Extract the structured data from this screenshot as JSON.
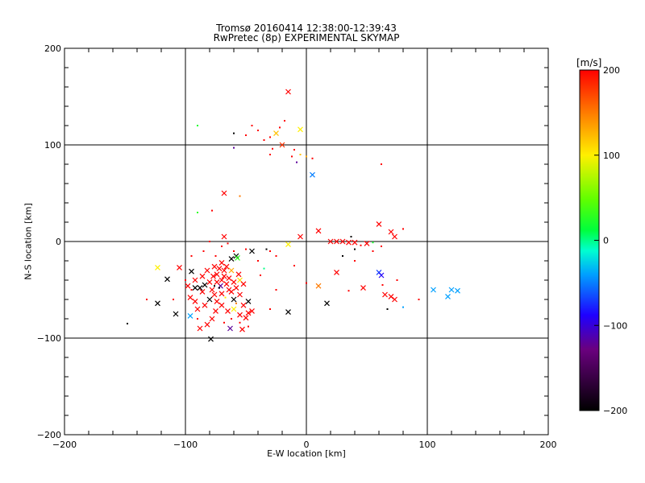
{
  "chart_data": {
    "type": "scatter",
    "title": "Tromsø 20160414 12:38:00-12:39:43",
    "subtitle": "RwPretec (8p) EXPERIMENTAL SKYMAP",
    "xlabel": "E-W location [km]",
    "ylabel": "N-S location [km]",
    "xlim": [
      -200,
      200
    ],
    "ylim": [
      -200,
      200
    ],
    "x_ticks": [
      -200,
      -100,
      0,
      100,
      200
    ],
    "y_ticks": [
      -200,
      -100,
      0,
      100,
      200
    ],
    "x_tick_labels": [
      "−200",
      "−100",
      "0",
      "100",
      "200"
    ],
    "y_tick_labels": [
      "−200",
      "−100",
      "0",
      "100",
      "200"
    ],
    "grid": true,
    "colorbar": {
      "unit": "[m/s]",
      "range": [
        -200,
        200
      ],
      "ticks": [
        -200,
        -100,
        0,
        100,
        200
      ],
      "tick_labels": [
        "−200",
        "−100",
        "0",
        "100",
        "200"
      ],
      "colormap": "rainbow (black-purple-blue-cyan-green-yellow-red)"
    },
    "markers": {
      "large": "cross (x)",
      "small": "dot"
    },
    "points": [
      {
        "x": -15,
        "y": 155,
        "v": 200,
        "m": "x"
      },
      {
        "x": -5,
        "y": 116,
        "v": 100,
        "m": "x"
      },
      {
        "x": -25,
        "y": 112,
        "v": 120,
        "m": "x"
      },
      {
        "x": -20,
        "y": 100,
        "v": 180,
        "m": "x"
      },
      {
        "x": -30,
        "y": 108,
        "v": 200,
        "m": "."
      },
      {
        "x": -35,
        "y": 105,
        "v": 200,
        "m": "."
      },
      {
        "x": -40,
        "y": 115,
        "v": 200,
        "m": "."
      },
      {
        "x": -45,
        "y": 120,
        "v": 200,
        "m": "."
      },
      {
        "x": -50,
        "y": 110,
        "v": 200,
        "m": "."
      },
      {
        "x": -60,
        "y": 112,
        "v": -200,
        "m": "."
      },
      {
        "x": -60,
        "y": 97,
        "v": -120,
        "m": "."
      },
      {
        "x": -10,
        "y": 95,
        "v": 200,
        "m": "."
      },
      {
        "x": -5,
        "y": 90,
        "v": 120,
        "m": "."
      },
      {
        "x": 0,
        "y": 88,
        "v": 130,
        "m": "."
      },
      {
        "x": 5,
        "y": 86,
        "v": 200,
        "m": "."
      },
      {
        "x": -8,
        "y": 82,
        "v": -120,
        "m": "."
      },
      {
        "x": -12,
        "y": 88,
        "v": 200,
        "m": "."
      },
      {
        "x": -30,
        "y": 90,
        "v": 200,
        "m": "."
      },
      {
        "x": -28,
        "y": 96,
        "v": 200,
        "m": "."
      },
      {
        "x": -22,
        "y": 118,
        "v": 200,
        "m": "."
      },
      {
        "x": -18,
        "y": 125,
        "v": 200,
        "m": "."
      },
      {
        "x": 5,
        "y": 69,
        "v": -50,
        "m": "x"
      },
      {
        "x": 62,
        "y": 80,
        "v": 200,
        "m": "."
      },
      {
        "x": -90,
        "y": 120,
        "v": 20,
        "m": "."
      },
      {
        "x": -68,
        "y": 50,
        "v": 200,
        "m": "x"
      },
      {
        "x": -55,
        "y": 47,
        "v": 150,
        "m": "."
      },
      {
        "x": -90,
        "y": 30,
        "v": 30,
        "m": "."
      },
      {
        "x": -78,
        "y": 32,
        "v": 200,
        "m": "."
      },
      {
        "x": -68,
        "y": 5,
        "v": 200,
        "m": "x"
      },
      {
        "x": -5,
        "y": 5,
        "v": 200,
        "m": "x"
      },
      {
        "x": 10,
        "y": 11,
        "v": 200,
        "m": "x"
      },
      {
        "x": -15,
        "y": -3,
        "v": 100,
        "m": "x"
      },
      {
        "x": 20,
        "y": 0,
        "v": 200,
        "m": "x"
      },
      {
        "x": 25,
        "y": 0,
        "v": 200,
        "m": "x"
      },
      {
        "x": 30,
        "y": 0,
        "v": 200,
        "m": "x"
      },
      {
        "x": 35,
        "y": -1,
        "v": 200,
        "m": "x"
      },
      {
        "x": 40,
        "y": -1,
        "v": 200,
        "m": "x"
      },
      {
        "x": 37,
        "y": 5,
        "v": -200,
        "m": "."
      },
      {
        "x": 45,
        "y": -4,
        "v": 200,
        "m": "."
      },
      {
        "x": 50,
        "y": -2,
        "v": 200,
        "m": "x"
      },
      {
        "x": 55,
        "y": -1,
        "v": 20,
        "m": "."
      },
      {
        "x": 60,
        "y": 18,
        "v": 200,
        "m": "x"
      },
      {
        "x": 70,
        "y": 10,
        "v": 200,
        "m": "x"
      },
      {
        "x": 73,
        "y": 5,
        "v": 200,
        "m": "x"
      },
      {
        "x": 80,
        "y": 13,
        "v": 200,
        "m": "."
      },
      {
        "x": 62,
        "y": -5,
        "v": 200,
        "m": "."
      },
      {
        "x": 40,
        "y": -8,
        "v": -200,
        "m": "."
      },
      {
        "x": 30,
        "y": -15,
        "v": -200,
        "m": "."
      },
      {
        "x": -33,
        "y": -8,
        "v": -200,
        "m": "."
      },
      {
        "x": -45,
        "y": -10,
        "v": -200,
        "m": "x"
      },
      {
        "x": -58,
        "y": -15,
        "v": -200,
        "m": "x"
      },
      {
        "x": -25,
        "y": -15,
        "v": 200,
        "m": "."
      },
      {
        "x": -35,
        "y": -28,
        "v": 0,
        "m": "."
      },
      {
        "x": -10,
        "y": -25,
        "v": 200,
        "m": "."
      },
      {
        "x": 25,
        "y": -32,
        "v": 200,
        "m": "x"
      },
      {
        "x": 10,
        "y": -46,
        "v": 150,
        "m": "x"
      },
      {
        "x": 0,
        "y": -43,
        "v": 200,
        "m": "."
      },
      {
        "x": 35,
        "y": -51,
        "v": 200,
        "m": "."
      },
      {
        "x": 47,
        "y": -48,
        "v": 200,
        "m": "x"
      },
      {
        "x": 60,
        "y": -32,
        "v": -70,
        "m": "x"
      },
      {
        "x": 62,
        "y": -35,
        "v": -90,
        "m": "x"
      },
      {
        "x": 65,
        "y": -55,
        "v": 200,
        "m": "x"
      },
      {
        "x": 70,
        "y": -57,
        "v": 200,
        "m": "x"
      },
      {
        "x": 73,
        "y": -60,
        "v": 200,
        "m": "x"
      },
      {
        "x": 67,
        "y": -70,
        "v": -200,
        "m": "."
      },
      {
        "x": 80,
        "y": -68,
        "v": -40,
        "m": "."
      },
      {
        "x": 93,
        "y": -60,
        "v": 200,
        "m": "."
      },
      {
        "x": 105,
        "y": -50,
        "v": -40,
        "m": "x"
      },
      {
        "x": 117,
        "y": -57,
        "v": -40,
        "m": "x"
      },
      {
        "x": 120,
        "y": -50,
        "v": -40,
        "m": "x"
      },
      {
        "x": 125,
        "y": -51,
        "v": -40,
        "m": "x"
      },
      {
        "x": 17,
        "y": -64,
        "v": -200,
        "m": "x"
      },
      {
        "x": -15,
        "y": -73,
        "v": -200,
        "m": "x"
      },
      {
        "x": -25,
        "y": -50,
        "v": 200,
        "m": "."
      },
      {
        "x": -30,
        "y": -70,
        "v": 200,
        "m": "."
      },
      {
        "x": -123,
        "y": -27,
        "v": 100,
        "m": "x"
      },
      {
        "x": -105,
        "y": -27,
        "v": 200,
        "m": "x"
      },
      {
        "x": -115,
        "y": -39,
        "v": -200,
        "m": "x"
      },
      {
        "x": -95,
        "y": -31,
        "v": -200,
        "m": "x"
      },
      {
        "x": -123,
        "y": -64,
        "v": -200,
        "m": "x"
      },
      {
        "x": -108,
        "y": -75,
        "v": -200,
        "m": "x"
      },
      {
        "x": -148,
        "y": -85,
        "v": -200,
        "m": "."
      },
      {
        "x": -132,
        "y": -60,
        "v": 200,
        "m": "."
      },
      {
        "x": -96,
        "y": -77,
        "v": -40,
        "m": "x"
      },
      {
        "x": -79,
        "y": -101,
        "v": -200,
        "m": "x"
      },
      {
        "x": -63,
        "y": -90,
        "v": -120,
        "m": "x"
      },
      {
        "x": -53,
        "y": -91,
        "v": 200,
        "m": "x"
      },
      {
        "x": -60,
        "y": -70,
        "v": 100,
        "m": "x"
      },
      {
        "x": -60,
        "y": -60,
        "v": -200,
        "m": "x"
      },
      {
        "x": -48,
        "y": -62,
        "v": -200,
        "m": "x"
      },
      {
        "x": -62,
        "y": -18,
        "v": -200,
        "m": "x"
      },
      {
        "x": -57,
        "y": -17,
        "v": 30,
        "m": "x"
      },
      {
        "x": -62,
        "y": -30,
        "v": 130,
        "m": "x"
      },
      {
        "x": -55,
        "y": -40,
        "v": 110,
        "m": "x"
      },
      {
        "x": -68,
        "y": -30,
        "v": 200,
        "m": "x"
      },
      {
        "x": -72,
        "y": -28,
        "v": 200,
        "m": "x"
      },
      {
        "x": -74,
        "y": -34,
        "v": 200,
        "m": "x"
      },
      {
        "x": -77,
        "y": -36,
        "v": 200,
        "m": "x"
      },
      {
        "x": -70,
        "y": -40,
        "v": 200,
        "m": "x"
      },
      {
        "x": -66,
        "y": -44,
        "v": 200,
        "m": "x"
      },
      {
        "x": -71,
        "y": -46,
        "v": -120,
        "m": "x"
      },
      {
        "x": -80,
        "y": -42,
        "v": 200,
        "m": "x"
      },
      {
        "x": -84,
        "y": -45,
        "v": -200,
        "m": "x"
      },
      {
        "x": -88,
        "y": -48,
        "v": -200,
        "m": "x"
      },
      {
        "x": -92,
        "y": -48,
        "v": -200,
        "m": "x"
      },
      {
        "x": -86,
        "y": -52,
        "v": 200,
        "m": "x"
      },
      {
        "x": -78,
        "y": -50,
        "v": 200,
        "m": "x"
      },
      {
        "x": -76,
        "y": -55,
        "v": 200,
        "m": "x"
      },
      {
        "x": -70,
        "y": -54,
        "v": 200,
        "m": "x"
      },
      {
        "x": -64,
        "y": -50,
        "v": 200,
        "m": "x"
      },
      {
        "x": -58,
        "y": -48,
        "v": 200,
        "m": "x"
      },
      {
        "x": -55,
        "y": -55,
        "v": 200,
        "m": "x"
      },
      {
        "x": -52,
        "y": -66,
        "v": 200,
        "m": "x"
      },
      {
        "x": -48,
        "y": -74,
        "v": 200,
        "m": "x"
      },
      {
        "x": -50,
        "y": -79,
        "v": 200,
        "m": "x"
      },
      {
        "x": -45,
        "y": -72,
        "v": 200,
        "m": "x"
      },
      {
        "x": -55,
        "y": -76,
        "v": 200,
        "m": "x"
      },
      {
        "x": -65,
        "y": -72,
        "v": 200,
        "m": "x"
      },
      {
        "x": -70,
        "y": -66,
        "v": 200,
        "m": "x"
      },
      {
        "x": -75,
        "y": -72,
        "v": 200,
        "m": "x"
      },
      {
        "x": -78,
        "y": -80,
        "v": 200,
        "m": "x"
      },
      {
        "x": -82,
        "y": -86,
        "v": 200,
        "m": "x"
      },
      {
        "x": -88,
        "y": -90,
        "v": 200,
        "m": "x"
      },
      {
        "x": -90,
        "y": -70,
        "v": 200,
        "m": "x"
      },
      {
        "x": -92,
        "y": -62,
        "v": 200,
        "m": "x"
      },
      {
        "x": -96,
        "y": -58,
        "v": 200,
        "m": "x"
      },
      {
        "x": -98,
        "y": -46,
        "v": 200,
        "m": "x"
      },
      {
        "x": -92,
        "y": -40,
        "v": 200,
        "m": "x"
      },
      {
        "x": -86,
        "y": -36,
        "v": 200,
        "m": "x"
      },
      {
        "x": -82,
        "y": -30,
        "v": 200,
        "m": "x"
      },
      {
        "x": -76,
        "y": -26,
        "v": 200,
        "m": "x"
      },
      {
        "x": -70,
        "y": -22,
        "v": 200,
        "m": "x"
      },
      {
        "x": -66,
        "y": -26,
        "v": 200,
        "m": "x"
      },
      {
        "x": -64,
        "y": -38,
        "v": 200,
        "m": "x"
      },
      {
        "x": -60,
        "y": -42,
        "v": 200,
        "m": "x"
      },
      {
        "x": -56,
        "y": -34,
        "v": 200,
        "m": "x"
      },
      {
        "x": -52,
        "y": -44,
        "v": 200,
        "m": "x"
      },
      {
        "x": -74,
        "y": -42,
        "v": 200,
        "m": "x"
      },
      {
        "x": -68,
        "y": -36,
        "v": 200,
        "m": "x"
      },
      {
        "x": -74,
        "y": -62,
        "v": 200,
        "m": "x"
      },
      {
        "x": -80,
        "y": -60,
        "v": -200,
        "m": "x"
      },
      {
        "x": -84,
        "y": -66,
        "v": 200,
        "m": "x"
      },
      {
        "x": -62,
        "y": -52,
        "v": 200,
        "m": "x"
      },
      {
        "x": -80,
        "y": 0,
        "v": 200,
        "m": "."
      },
      {
        "x": -70,
        "y": -5,
        "v": 200,
        "m": "."
      },
      {
        "x": -65,
        "y": -2,
        "v": 200,
        "m": "."
      },
      {
        "x": -40,
        "y": -20,
        "v": 200,
        "m": "."
      },
      {
        "x": -38,
        "y": -35,
        "v": 200,
        "m": "."
      },
      {
        "x": -100,
        "y": -40,
        "v": 200,
        "m": "."
      },
      {
        "x": -95,
        "y": -15,
        "v": 200,
        "m": "."
      },
      {
        "x": -85,
        "y": -10,
        "v": 200,
        "m": "."
      },
      {
        "x": -75,
        "y": -15,
        "v": 200,
        "m": "."
      },
      {
        "x": -90,
        "y": -80,
        "v": 200,
        "m": "."
      },
      {
        "x": -68,
        "y": -84,
        "v": 200,
        "m": "."
      },
      {
        "x": -72,
        "y": -48,
        "v": -200,
        "m": "."
      },
      {
        "x": -76,
        "y": -46,
        "v": -200,
        "m": "."
      },
      {
        "x": -67,
        "y": -58,
        "v": 100,
        "m": "."
      },
      {
        "x": -58,
        "y": -64,
        "v": 150,
        "m": "."
      },
      {
        "x": -62,
        "y": -80,
        "v": 200,
        "m": "."
      },
      {
        "x": -55,
        "y": -84,
        "v": 200,
        "m": "."
      },
      {
        "x": -48,
        "y": -88,
        "v": 200,
        "m": "."
      },
      {
        "x": -95,
        "y": -50,
        "v": 200,
        "m": "."
      },
      {
        "x": -110,
        "y": -60,
        "v": 200,
        "m": "."
      },
      {
        "x": -60,
        "y": -10,
        "v": 200,
        "m": "."
      },
      {
        "x": -50,
        "y": -8,
        "v": 200,
        "m": "."
      },
      {
        "x": -30,
        "y": -10,
        "v": 200,
        "m": "."
      },
      {
        "x": 40,
        "y": -20,
        "v": 200,
        "m": "."
      },
      {
        "x": 55,
        "y": -10,
        "v": 200,
        "m": "."
      },
      {
        "x": 63,
        "y": -45,
        "v": 200,
        "m": "."
      },
      {
        "x": 75,
        "y": -40,
        "v": 200,
        "m": "."
      }
    ]
  }
}
